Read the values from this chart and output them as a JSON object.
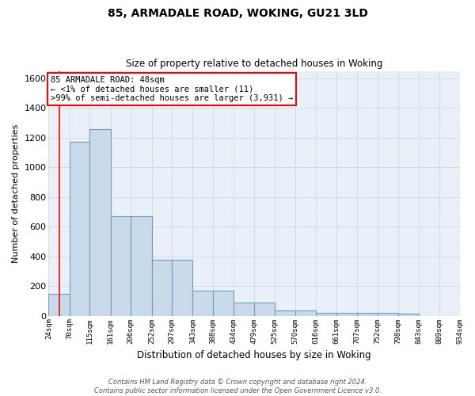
{
  "title": "85, ARMADALE ROAD, WOKING, GU21 3LD",
  "subtitle": "Size of property relative to detached houses in Woking",
  "xlabel": "Distribution of detached houses by size in Woking",
  "ylabel": "Number of detached properties",
  "bar_color": "#c9daea",
  "bar_edge_color": "#6a9ec0",
  "background_color": "#eaf0f8",
  "grid_color": "#d0dce8",
  "annotation_text": "85 ARMADALE ROAD: 48sqm\n← <1% of detached houses are smaller (11)\n>99% of semi-detached houses are larger (3,931) →",
  "property_line_x": 48,
  "property_line_color": "red",
  "bins": [
    24,
    70,
    115,
    161,
    206,
    252,
    297,
    343,
    388,
    434,
    479,
    525,
    570,
    616,
    661,
    707,
    752,
    798,
    843,
    889,
    934
  ],
  "counts": [
    150,
    1170,
    1260,
    670,
    670,
    375,
    375,
    170,
    170,
    90,
    90,
    35,
    35,
    20,
    20,
    20,
    20,
    15,
    0,
    0,
    0
  ],
  "footer": "Contains HM Land Registry data © Crown copyright and database right 2024.\nContains public sector information licensed under the Open Government Licence v3.0.",
  "ylim": [
    0,
    1650
  ],
  "yticks": [
    0,
    200,
    400,
    600,
    800,
    1000,
    1200,
    1400,
    1600
  ]
}
